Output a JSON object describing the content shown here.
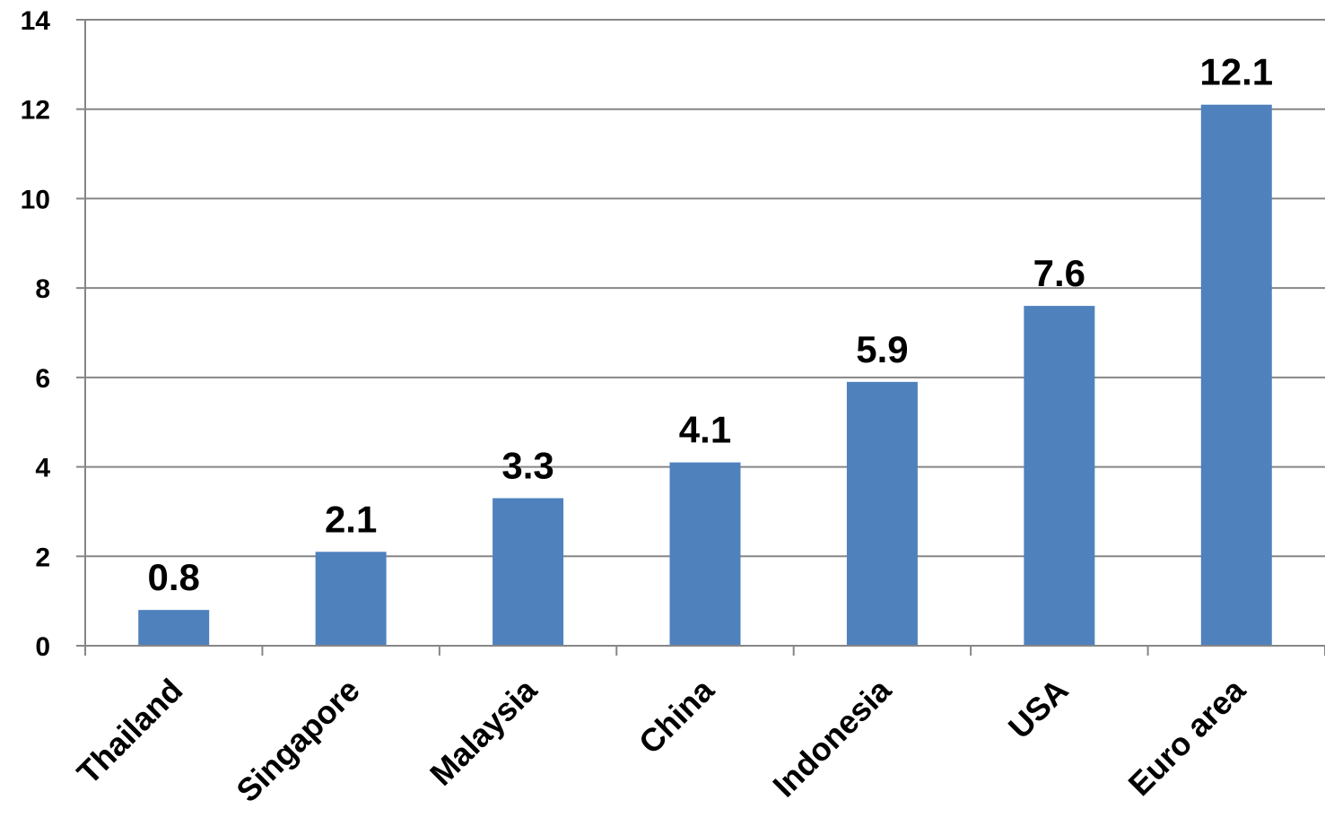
{
  "chart_data": {
    "type": "bar",
    "categories": [
      "Thailand",
      "Singapore",
      "Malaysia",
      "China",
      "Indonesia",
      "USA",
      "Euro area"
    ],
    "values": [
      0.8,
      2.1,
      3.3,
      4.1,
      5.9,
      7.6,
      12.1
    ],
    "data_labels": [
      "0.8",
      "2.1",
      "3.3",
      "4.1",
      "5.9",
      "7.6",
      "12.1"
    ],
    "y_ticks": [
      0,
      2,
      4,
      6,
      8,
      10,
      12,
      14
    ],
    "ylim": [
      0,
      14
    ],
    "grid": true,
    "bar_color": "#4F81BD"
  }
}
